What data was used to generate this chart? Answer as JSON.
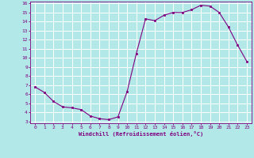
{
  "x": [
    0,
    1,
    2,
    3,
    4,
    5,
    6,
    7,
    8,
    9,
    10,
    11,
    12,
    13,
    14,
    15,
    16,
    17,
    18,
    19,
    20,
    21,
    22,
    23
  ],
  "y": [
    6.8,
    6.2,
    5.2,
    4.6,
    4.5,
    4.3,
    3.6,
    3.3,
    3.2,
    3.5,
    6.3,
    10.5,
    14.3,
    14.1,
    14.7,
    15.0,
    15.0,
    15.3,
    15.8,
    15.7,
    15.0,
    13.4,
    11.4,
    9.6
  ],
  "xlabel": "Windchill (Refroidissement éolien,°C)",
  "ylim_min": 3,
  "ylim_max": 16,
  "xlim_min": -0.5,
  "xlim_max": 23.5,
  "bg_color": "#b2e8e8",
  "line_color": "#800080",
  "marker_color": "#800080",
  "grid_color": "#ffffff",
  "spine_color": "#800080",
  "tick_color": "#800080",
  "label_color": "#800080",
  "yticks": [
    3,
    4,
    5,
    6,
    7,
    8,
    9,
    10,
    11,
    12,
    13,
    14,
    15,
    16
  ],
  "xticks": [
    0,
    1,
    2,
    3,
    4,
    5,
    6,
    7,
    8,
    9,
    10,
    11,
    12,
    13,
    14,
    15,
    16,
    17,
    18,
    19,
    20,
    21,
    22,
    23
  ]
}
